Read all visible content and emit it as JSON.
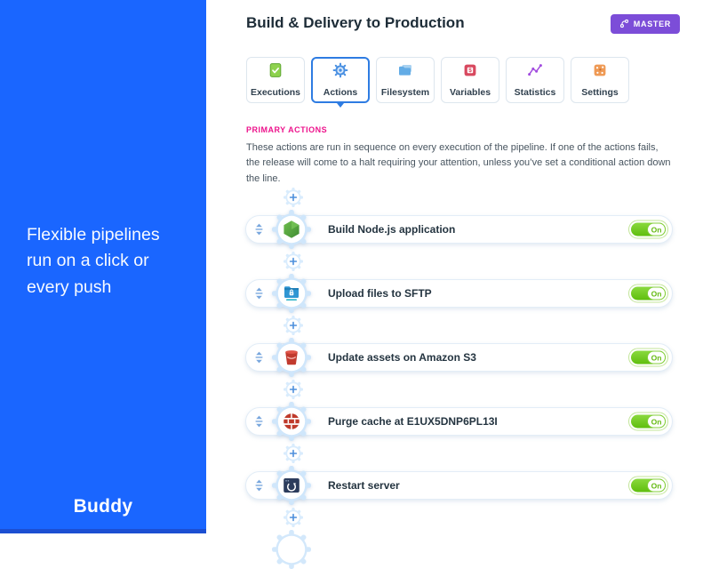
{
  "sidebar": {
    "tagline": "Flexible pipelines\nrun on a click or\nevery push",
    "brand": "Buddy"
  },
  "header": {
    "title": "Build & Delivery to Production",
    "badge": {
      "label": "MASTER",
      "icon": "git-branch-icon",
      "color": "#7C4DD8"
    }
  },
  "tabs": [
    {
      "label": "Executions",
      "icon": "document-check-icon",
      "selected": false
    },
    {
      "label": "Actions",
      "icon": "gear-icon",
      "selected": true
    },
    {
      "label": "Filesystem",
      "icon": "folders-icon",
      "selected": false
    },
    {
      "label": "Variables",
      "icon": "dollar-square-icon",
      "selected": false
    },
    {
      "label": "Statistics",
      "icon": "line-chart-icon",
      "selected": false
    },
    {
      "label": "Settings",
      "icon": "control-grid-icon",
      "selected": false
    }
  ],
  "section": {
    "label": "PRIMARY ACTIONS",
    "description": "These actions are run in sequence on every execution of the pipeline. If one of the actions fails, the release will come to a halt requiring your attention, unless you’ve set a conditional action down the line."
  },
  "actions": [
    {
      "label": "Build Node.js application",
      "icon": "nodejs-icon",
      "toggle_label": "On"
    },
    {
      "label": "Upload files to SFTP",
      "icon": "sftp-upload-icon",
      "toggle_label": "On"
    },
    {
      "label": "Update assets on Amazon S3",
      "icon": "amazon-s3-icon",
      "toggle_label": "On"
    },
    {
      "label": "Purge cache at E1UX5DNP6PL13I",
      "icon": "purge-cache-icon",
      "toggle_label": "On"
    },
    {
      "label": "Restart server",
      "icon": "restart-server-icon",
      "toggle_label": "On"
    }
  ],
  "colors": {
    "sidebar_blue": "#1A66FF",
    "accent_pink": "#ED138C",
    "toggle_green": "#6DC314",
    "badge_purple": "#7C4DD8",
    "selected_tab_blue": "#2E7CE2"
  }
}
